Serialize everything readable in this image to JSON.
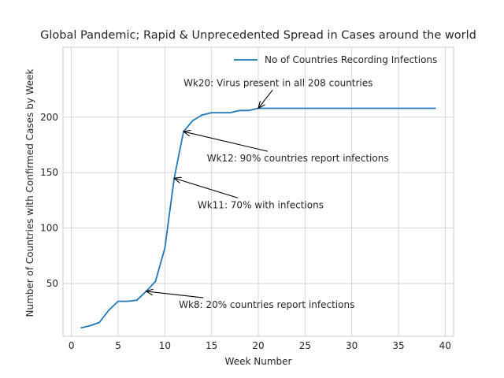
{
  "chart_data": {
    "type": "line",
    "title": "Global Pandemic; Rapid & Unprecedented Spread in Cases around the world",
    "xlabel": "Week Number",
    "ylabel": "Number of Countries with Confirmed Cases by Week",
    "xlim": [
      -0.9,
      40.9
    ],
    "ylim": [
      2.5,
      263
    ],
    "xticks": [
      0,
      5,
      10,
      15,
      20,
      25,
      30,
      35,
      40
    ],
    "yticks": [
      50,
      100,
      150,
      200
    ],
    "grid": true,
    "legend_position": "top-right",
    "series": [
      {
        "name": "No of Countries Recording Infections",
        "color": "#1f77b4",
        "x": [
          1,
          2,
          3,
          4,
          5,
          6,
          7,
          8,
          9,
          10,
          11,
          12,
          13,
          14,
          15,
          16,
          17,
          18,
          19,
          20,
          21,
          22,
          23,
          24,
          25,
          26,
          27,
          28,
          29,
          30,
          31,
          32,
          33,
          34,
          35,
          36,
          37,
          38,
          39
        ],
        "y": [
          10,
          12,
          15,
          26,
          34,
          34,
          35,
          43,
          52,
          82,
          145,
          187,
          197,
          202,
          204,
          204,
          204,
          206,
          206,
          208,
          208,
          208,
          208,
          208,
          208,
          208,
          208,
          208,
          208,
          208,
          208,
          208,
          208,
          208,
          208,
          208,
          208,
          208,
          208
        ]
      }
    ],
    "annotations": [
      {
        "text": "Wk20: Virus present in all 208 countries",
        "text_x": 12,
        "text_y": 228,
        "point_x": 20,
        "point_y": 208
      },
      {
        "text": "Wk12: 90% countries report infections",
        "text_x": 14.5,
        "text_y": 160,
        "point_x": 12,
        "point_y": 187
      },
      {
        "text": "Wk11: 70%  with infections",
        "text_x": 13.5,
        "text_y": 118,
        "point_x": 11,
        "point_y": 145
      },
      {
        "text": "Wk8: 20% countries report infections",
        "text_x": 11.5,
        "text_y": 28,
        "point_x": 8,
        "point_y": 43
      }
    ]
  }
}
